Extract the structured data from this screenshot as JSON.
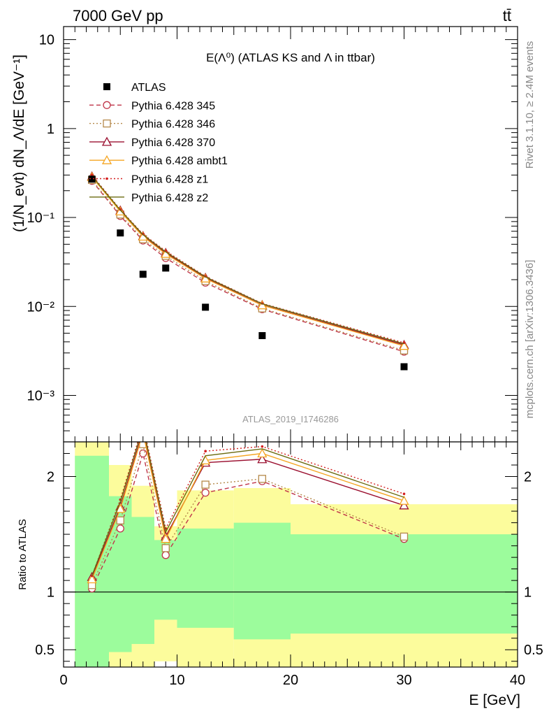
{
  "header": {
    "left": "7000 GeV pp",
    "right": "tt̄"
  },
  "side_labels": {
    "rivet": "Rivet 3.1.10, ≥ 2.4M events",
    "mcplots": "mcplots.cern.ch [arXiv:1306.3436]"
  },
  "chart_data": {
    "type": "line",
    "title": "E(Λ⁰) (ATLAS KS and Λ in ttbar)",
    "analysis_tag": "ATLAS_2019_I1746286",
    "xlabel": "E [GeV]",
    "ylabel": "(1/N_evt) dN_Λ/dE [GeV⁻¹]",
    "ratio_ylabel": "Ratio to ATLAS",
    "xlim": [
      0,
      40
    ],
    "ylim": [
      0.0003,
      14
    ],
    "yscale": "log",
    "ratio_ylim": [
      0.35,
      2.3
    ],
    "legend_position": "top-left",
    "x_ticks": [
      "0",
      "10",
      "20",
      "30",
      "40"
    ],
    "y_ticks": [
      "10⁻³",
      "10⁻²",
      "10⁻¹",
      "1",
      "10"
    ],
    "ratio_ticks": [
      "0.5",
      "1",
      "2"
    ],
    "bins": [
      {
        "lo": 1,
        "hi": 4,
        "x": 2.5
      },
      {
        "lo": 4,
        "hi": 6,
        "x": 5
      },
      {
        "lo": 6,
        "hi": 8,
        "x": 7
      },
      {
        "lo": 8,
        "hi": 10,
        "x": 9
      },
      {
        "lo": 10,
        "hi": 15,
        "x": 12.5
      },
      {
        "lo": 15,
        "hi": 20,
        "x": 17.5
      },
      {
        "lo": 20,
        "hi": 40,
        "x": 30
      }
    ],
    "data": {
      "name": "ATLAS",
      "values": [
        0.27,
        0.067,
        0.023,
        0.027,
        0.0098,
        0.0047,
        0.0021
      ],
      "color": "#000000"
    },
    "series": [
      {
        "name": "Pythia 6.428 345",
        "color": "#c0364a",
        "marker": "circle",
        "dash": "6,4",
        "values": [
          0.258,
          0.104,
          0.055,
          0.035,
          0.0185,
          0.0093,
          0.0031
        ]
      },
      {
        "name": "Pythia 6.428 346",
        "color": "#b5894a",
        "marker": "square",
        "dash": "2,3",
        "values": [
          0.264,
          0.108,
          0.057,
          0.037,
          0.0193,
          0.0095,
          0.0032
        ]
      },
      {
        "name": "Pythia 6.428 370",
        "color": "#9b1030",
        "marker": "triangle",
        "dash": "",
        "values": [
          0.29,
          0.12,
          0.062,
          0.04,
          0.021,
          0.0104,
          0.0037
        ]
      },
      {
        "name": "Pythia 6.428 ambt1",
        "color": "#f5a623",
        "marker": "triangle",
        "dash": "",
        "values": [
          0.285,
          0.117,
          0.061,
          0.039,
          0.0206,
          0.0103,
          0.0036
        ]
      },
      {
        "name": "Pythia 6.428 z1",
        "color": "#d42020",
        "marker": "dot",
        "dash": "2,3",
        "values": [
          0.3,
          0.123,
          0.065,
          0.042,
          0.0218,
          0.0108,
          0.0039
        ]
      },
      {
        "name": "Pythia 6.428 z2",
        "color": "#6b6b10",
        "marker": "none",
        "dash": "",
        "values": [
          0.292,
          0.121,
          0.064,
          0.041,
          0.0215,
          0.0107,
          0.0038
        ]
      }
    ],
    "ratio_series": [
      {
        "name": "Pythia 6.428 345",
        "values": [
          1.03,
          1.55,
          2.2,
          1.32,
          1.86,
          1.96,
          1.46
        ]
      },
      {
        "name": "Pythia 6.428 346",
        "values": [
          1.06,
          1.62,
          2.28,
          1.38,
          1.93,
          1.98,
          1.48
        ]
      },
      {
        "name": "Pythia 6.428 370",
        "values": [
          1.13,
          1.74,
          2.4,
          1.48,
          2.12,
          2.15,
          1.75
        ]
      },
      {
        "name": "Pythia 6.428 ambt1",
        "values": [
          1.11,
          1.72,
          2.38,
          1.46,
          2.14,
          2.2,
          1.79
        ]
      },
      {
        "name": "Pythia 6.428 z1",
        "values": [
          1.14,
          1.8,
          2.45,
          1.55,
          2.22,
          2.26,
          1.85
        ]
      },
      {
        "name": "Pythia 6.428 z2",
        "values": [
          1.14,
          1.78,
          2.43,
          1.52,
          2.18,
          2.24,
          1.82
        ]
      }
    ],
    "uncertainty_bands": {
      "green": {
        "color": "#9cfc9c",
        "lo": [
          0.35,
          0.48,
          0.55,
          0.76,
          0.69,
          0.59,
          0.64
        ],
        "hi": [
          2.18,
          1.83,
          1.65,
          1.45,
          1.55,
          1.6,
          1.5
        ]
      },
      "yellow": {
        "color": "#fcfc9c",
        "lo": [
          0.35,
          0.35,
          0.35,
          0.4,
          0.35,
          0.35,
          0.35
        ],
        "hi": [
          2.3,
          2.1,
          1.92,
          1.57,
          1.88,
          1.9,
          1.76
        ]
      }
    }
  }
}
